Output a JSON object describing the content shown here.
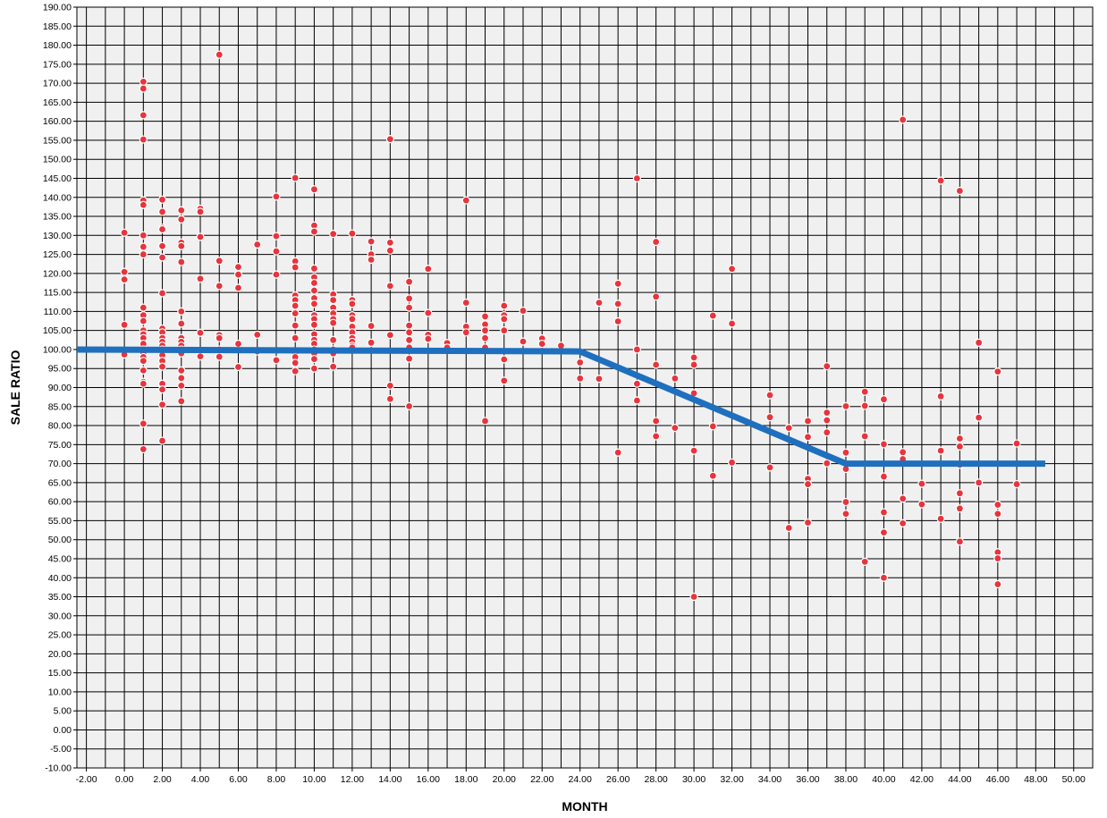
{
  "chart_data": {
    "type": "scatter",
    "title": "",
    "xlabel": "MONTH",
    "ylabel": "SALE RATIO",
    "xlim": [
      -2.5,
      51
    ],
    "ylim": [
      -10,
      190
    ],
    "x_tick_step": 2,
    "y_tick_step": 5,
    "x_tick_decimals": 2,
    "y_tick_decimals": 2,
    "grid": true,
    "minor_x_grid": true,
    "colors": {
      "plot_background": "#f0f0f0",
      "grid": "#000000",
      "point_fill": "#e8343c",
      "point_stroke": "#ffffff",
      "trend_line": "#1f6fbf"
    },
    "series": [
      {
        "points": [
          [
            0,
            130.7
          ],
          [
            0,
            120.4
          ],
          [
            0,
            118.4
          ],
          [
            0,
            106.5
          ],
          [
            0,
            98.7
          ],
          [
            1,
            170.4
          ],
          [
            1,
            168.6
          ],
          [
            1,
            161.6
          ],
          [
            1,
            155.2
          ],
          [
            1,
            139.2
          ],
          [
            1,
            138.0
          ],
          [
            1,
            130.0
          ],
          [
            1,
            127.0
          ],
          [
            1,
            125.0
          ],
          [
            1,
            111.0
          ],
          [
            1,
            109.0
          ],
          [
            1,
            107.5
          ],
          [
            1,
            105.0
          ],
          [
            1,
            104.0
          ],
          [
            1,
            103.0
          ],
          [
            1,
            101.5
          ],
          [
            1,
            100.0
          ],
          [
            1,
            99.0
          ],
          [
            1,
            98.0
          ],
          [
            1,
            97.0
          ],
          [
            1,
            94.5
          ],
          [
            1,
            91.5
          ],
          [
            1,
            91.0
          ],
          [
            1,
            80.5
          ],
          [
            1,
            73.8
          ],
          [
            2,
            139.4
          ],
          [
            2,
            136.2
          ],
          [
            2,
            132.0
          ],
          [
            2,
            131.6
          ],
          [
            2,
            127.2
          ],
          [
            2,
            124.2
          ],
          [
            2,
            114.8
          ],
          [
            2,
            105.5
          ],
          [
            2,
            104.5
          ],
          [
            2,
            103.0
          ],
          [
            2,
            102.0
          ],
          [
            2,
            101.0
          ],
          [
            2,
            100.0
          ],
          [
            2,
            98.5
          ],
          [
            2,
            97.0
          ],
          [
            2,
            95.5
          ],
          [
            2,
            91.0
          ],
          [
            2,
            89.5
          ],
          [
            2,
            85.5
          ],
          [
            2,
            76.0
          ],
          [
            3,
            136.6
          ],
          [
            3,
            134.2
          ],
          [
            3,
            128.1
          ],
          [
            3,
            127.2
          ],
          [
            3,
            123.0
          ],
          [
            3,
            110.0
          ],
          [
            3,
            106.8
          ],
          [
            3,
            103.0
          ],
          [
            3,
            102.0
          ],
          [
            3,
            101.0
          ],
          [
            3,
            100.0
          ],
          [
            3,
            99.0
          ],
          [
            3,
            94.5
          ],
          [
            3,
            92.5
          ],
          [
            3,
            90.5
          ],
          [
            3,
            86.4
          ],
          [
            4,
            137.0
          ],
          [
            4,
            136.2
          ],
          [
            4,
            129.6
          ],
          [
            4,
            118.6
          ],
          [
            4,
            104.4
          ],
          [
            4,
            98.2
          ],
          [
            5,
            177.5
          ],
          [
            5,
            123.3
          ],
          [
            5,
            116.7
          ],
          [
            5,
            103.8
          ],
          [
            5,
            103.0
          ],
          [
            5,
            100.0
          ],
          [
            5,
            98.1
          ],
          [
            6,
            121.7
          ],
          [
            6,
            119.7
          ],
          [
            6,
            116.2
          ],
          [
            6,
            101.5
          ],
          [
            6,
            95.4
          ],
          [
            7,
            127.6
          ],
          [
            7,
            103.9
          ],
          [
            7,
            99.5
          ],
          [
            8,
            140.2
          ],
          [
            8,
            129.8
          ],
          [
            8,
            125.8
          ],
          [
            8,
            119.7
          ],
          [
            8,
            97.2
          ],
          [
            9,
            145.1
          ],
          [
            9,
            123.2
          ],
          [
            9,
            121.6
          ],
          [
            9,
            114.2
          ],
          [
            9,
            113.0
          ],
          [
            9,
            111.5
          ],
          [
            9,
            109.5
          ],
          [
            9,
            106.3
          ],
          [
            9,
            103.0
          ],
          [
            9,
            99.0
          ],
          [
            9,
            98.0
          ],
          [
            9,
            96.5
          ],
          [
            9,
            94.3
          ],
          [
            10,
            142.1
          ],
          [
            10,
            132.6
          ],
          [
            10,
            131.0
          ],
          [
            10,
            121.3
          ],
          [
            10,
            119.0
          ],
          [
            10,
            117.5
          ],
          [
            10,
            115.5
          ],
          [
            10,
            113.5
          ],
          [
            10,
            112.0
          ],
          [
            10,
            109.0
          ],
          [
            10,
            108.0
          ],
          [
            10,
            106.5
          ],
          [
            10,
            104.0
          ],
          [
            10,
            102.5
          ],
          [
            10,
            101.5
          ],
          [
            10,
            100.0
          ],
          [
            10,
            99.0
          ],
          [
            10,
            97.5
          ],
          [
            10,
            95.0
          ],
          [
            11,
            130.4
          ],
          [
            11,
            114.5
          ],
          [
            11,
            113.0
          ],
          [
            11,
            111.0
          ],
          [
            11,
            109.5
          ],
          [
            11,
            108.0
          ],
          [
            11,
            107.0
          ],
          [
            11,
            102.5
          ],
          [
            11,
            100.0
          ],
          [
            11,
            99.0
          ],
          [
            11,
            95.5
          ],
          [
            12,
            130.5
          ],
          [
            12,
            113.0
          ],
          [
            12,
            112.0
          ],
          [
            12,
            109.0
          ],
          [
            12,
            108.0
          ],
          [
            12,
            106.0
          ],
          [
            12,
            104.5
          ],
          [
            12,
            103.0
          ],
          [
            12,
            102.0
          ],
          [
            12,
            101.0
          ],
          [
            12,
            100.5
          ],
          [
            13,
            128.4
          ],
          [
            13,
            125.0
          ],
          [
            13,
            123.6
          ],
          [
            13,
            106.2
          ],
          [
            13,
            101.8
          ],
          [
            14,
            155.3
          ],
          [
            14,
            128.1
          ],
          [
            14,
            126.0
          ],
          [
            14,
            116.7
          ],
          [
            14,
            103.8
          ],
          [
            14,
            90.5
          ],
          [
            14,
            87.0
          ],
          [
            15,
            117.8
          ],
          [
            15,
            113.4
          ],
          [
            15,
            111.0
          ],
          [
            15,
            106.3
          ],
          [
            15,
            104.5
          ],
          [
            15,
            102.5
          ],
          [
            15,
            100.5
          ],
          [
            15,
            97.6
          ],
          [
            15,
            85.1
          ],
          [
            16,
            121.2
          ],
          [
            16,
            109.6
          ],
          [
            16,
            103.9
          ],
          [
            16,
            102.8
          ],
          [
            17,
            101.7
          ],
          [
            17,
            100.5
          ],
          [
            18,
            139.2
          ],
          [
            18,
            112.3
          ],
          [
            18,
            106.0
          ],
          [
            18,
            104.5
          ],
          [
            19,
            108.7
          ],
          [
            19,
            106.6
          ],
          [
            19,
            105.0
          ],
          [
            19,
            103.0
          ],
          [
            19,
            100.5
          ],
          [
            19,
            81.2
          ],
          [
            20,
            111.5
          ],
          [
            20,
            109.0
          ],
          [
            20,
            108.0
          ],
          [
            20,
            105.0
          ],
          [
            20,
            97.4
          ],
          [
            20,
            91.8
          ],
          [
            21,
            110.2
          ],
          [
            21,
            102.1
          ],
          [
            22,
            102.9
          ],
          [
            22,
            101.5
          ],
          [
            23,
            101.0
          ],
          [
            24,
            96.6
          ],
          [
            24,
            92.4
          ],
          [
            25,
            112.3
          ],
          [
            25,
            92.3
          ],
          [
            26,
            117.3
          ],
          [
            26,
            112.0
          ],
          [
            26,
            107.4
          ],
          [
            26,
            72.9
          ],
          [
            27,
            145.0
          ],
          [
            27,
            100.0
          ],
          [
            27,
            91.0
          ],
          [
            27,
            86.6
          ],
          [
            28,
            128.3
          ],
          [
            28,
            113.9
          ],
          [
            28,
            96.0
          ],
          [
            28,
            81.2
          ],
          [
            28,
            77.2
          ],
          [
            29,
            92.4
          ],
          [
            29,
            79.4
          ],
          [
            30,
            97.9
          ],
          [
            30,
            96.0
          ],
          [
            30,
            88.5
          ],
          [
            30,
            73.4
          ],
          [
            30,
            35.0
          ],
          [
            31,
            108.9
          ],
          [
            31,
            79.8
          ],
          [
            31,
            66.8
          ],
          [
            32,
            121.2
          ],
          [
            32,
            106.8
          ],
          [
            32,
            70.3
          ],
          [
            34,
            88.0
          ],
          [
            34,
            82.2
          ],
          [
            34,
            69.0
          ],
          [
            35,
            79.4
          ],
          [
            35,
            53.1
          ],
          [
            36,
            81.2
          ],
          [
            36,
            77.0
          ],
          [
            36,
            66.0
          ],
          [
            36,
            64.6
          ],
          [
            36,
            54.5
          ],
          [
            37,
            95.6
          ],
          [
            37,
            83.4
          ],
          [
            37,
            81.4
          ],
          [
            37,
            78.2
          ],
          [
            37,
            70.1
          ],
          [
            38,
            85.1
          ],
          [
            38,
            72.9
          ],
          [
            38,
            68.6
          ],
          [
            38,
            59.9
          ],
          [
            38,
            56.8
          ],
          [
            39,
            88.9
          ],
          [
            39,
            85.2
          ],
          [
            39,
            77.2
          ],
          [
            39,
            44.2
          ],
          [
            40,
            86.9
          ],
          [
            40,
            75.1
          ],
          [
            40,
            66.6
          ],
          [
            40,
            57.2
          ],
          [
            40,
            51.9
          ],
          [
            40,
            40.0
          ],
          [
            41,
            160.4
          ],
          [
            41,
            73.0
          ],
          [
            41,
            71.2
          ],
          [
            41,
            60.8
          ],
          [
            41,
            54.3
          ],
          [
            42,
            64.7
          ],
          [
            42,
            59.3
          ],
          [
            43,
            144.4
          ],
          [
            43,
            87.7
          ],
          [
            43,
            73.4
          ],
          [
            43,
            55.5
          ],
          [
            44,
            141.7
          ],
          [
            44,
            76.6
          ],
          [
            44,
            74.5
          ],
          [
            44,
            69.7
          ],
          [
            44,
            62.2
          ],
          [
            44,
            58.2
          ],
          [
            44,
            49.5
          ],
          [
            45,
            101.8
          ],
          [
            45,
            82.1
          ],
          [
            45,
            65.0
          ],
          [
            46,
            94.2
          ],
          [
            46,
            59.2
          ],
          [
            46,
            56.8
          ],
          [
            46,
            46.7
          ],
          [
            46,
            45.1
          ],
          [
            46,
            38.3
          ],
          [
            47,
            75.3
          ],
          [
            47,
            64.6
          ]
        ]
      }
    ],
    "trend_line": {
      "points": [
        [
          -2.5,
          100.0
        ],
        [
          24,
          99.5
        ],
        [
          38,
          70.0
        ],
        [
          48.5,
          70.0
        ]
      ]
    }
  }
}
